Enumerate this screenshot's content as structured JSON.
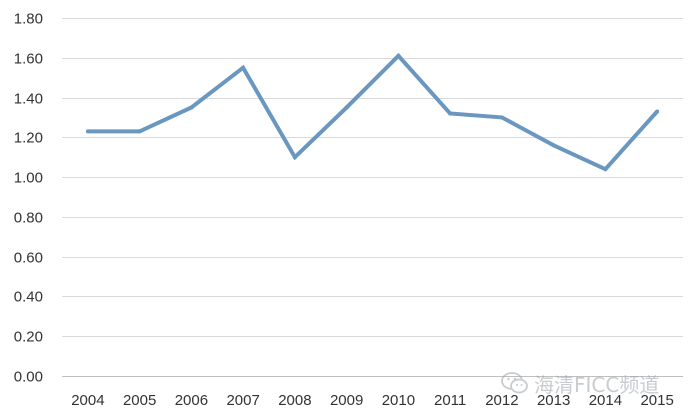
{
  "chart_data": {
    "type": "line",
    "title": "",
    "xlabel": "",
    "ylabel": "",
    "categories": [
      "2004",
      "2005",
      "2006",
      "2007",
      "2008",
      "2009",
      "2010",
      "2011",
      "2012",
      "2013",
      "2014",
      "2015"
    ],
    "series": [
      {
        "values": [
          1.23,
          1.23,
          1.35,
          1.55,
          1.1,
          1.35,
          1.61,
          1.32,
          1.3,
          1.16,
          1.04,
          1.33
        ]
      }
    ],
    "ylim": [
      0,
      1.8
    ],
    "yticks": [
      "0.00",
      "0.20",
      "0.40",
      "0.60",
      "0.80",
      "1.00",
      "1.20",
      "1.40",
      "1.60",
      "1.80"
    ],
    "grid": "horizontal",
    "legend": "none"
  },
  "colors": {
    "series": "#6a97bf",
    "grid": "#d9d9d9",
    "axis": "#bfbfbf",
    "tick_text": "#333333"
  },
  "watermark": {
    "text": "海清FICC频道",
    "icon": "wechat-icon"
  }
}
